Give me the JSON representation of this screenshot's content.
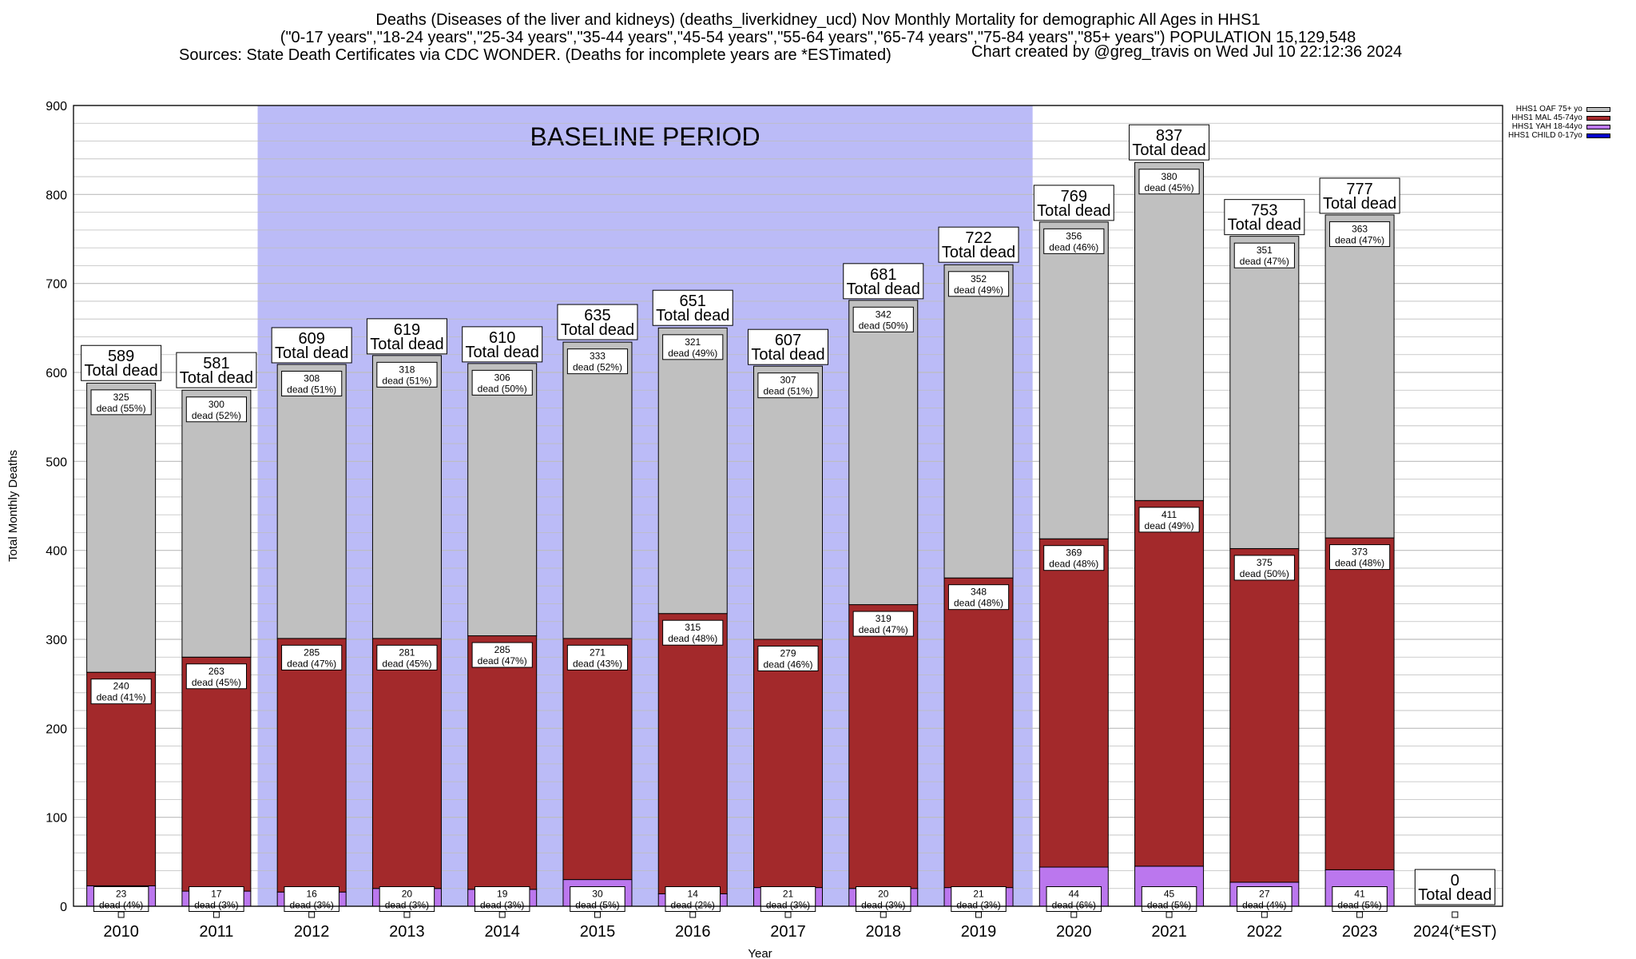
{
  "header": {
    "title_line1": "Deaths (Diseases of the liver and kidneys) (deaths_liverkidney_ucd) Nov Monthly Mortality for demographic All Ages in HHS1",
    "title_line2": "(\"0-17 years\",\"18-24 years\",\"25-34 years\",\"35-44 years\",\"45-54 years\",\"55-64 years\",\"65-74 years\",\"75-84 years\",\"85+ years\") POPULATION 15,129,548",
    "title_line3": "Sources: State Death Certificates via CDC WONDER. (Deaths for incomplete years are *ESTimated)",
    "credit": "Chart created by @greg_travis on Wed Jul 10 22:12:36 2024"
  },
  "chart_data": {
    "type": "bar",
    "stacked": true,
    "xlabel": "Year",
    "ylabel": "Total Monthly Deaths",
    "ylim": [
      0,
      900
    ],
    "yticks": [
      0,
      100,
      200,
      300,
      400,
      500,
      600,
      700,
      800,
      900
    ],
    "grid": true,
    "legend_position": "top-right",
    "annotation": "BASELINE PERIOD",
    "baseline_range": [
      "2012",
      "2019"
    ],
    "categories": [
      "2010",
      "2011",
      "2012",
      "2013",
      "2014",
      "2015",
      "2016",
      "2017",
      "2018",
      "2019",
      "2020",
      "2021",
      "2022",
      "2023",
      "2024(*EST)"
    ],
    "series": [
      {
        "name": "HHS1 CHILD 0-17yo",
        "color": "#0000cc",
        "values": [
          null,
          null,
          null,
          null,
          null,
          null,
          null,
          null,
          null,
          null,
          null,
          null,
          null,
          null,
          null
        ],
        "labels": [
          "",
          "",
          "",
          "",
          "",
          "",
          "",
          "",
          "",
          "",
          "",
          "",
          "",
          "",
          ""
        ]
      },
      {
        "name": "HHS1 YAH 18-44yo",
        "color": "#bb77ee",
        "values": [
          23,
          17,
          16,
          20,
          19,
          30,
          14,
          21,
          20,
          21,
          44,
          45,
          27,
          41,
          0
        ],
        "labels": [
          "dead (4%)",
          "dead (3%)",
          "dead (3%)",
          "dead (3%)",
          "dead (3%)",
          "dead (5%)",
          "dead (2%)",
          "dead (3%)",
          "dead (3%)",
          "dead (3%)",
          "dead (6%)",
          "dead (5%)",
          "dead (4%)",
          "dead (5%)",
          ""
        ]
      },
      {
        "name": "HHS1 MAL 45-74yo",
        "color": "#a3292b",
        "values": [
          240,
          263,
          285,
          281,
          285,
          271,
          315,
          279,
          319,
          348,
          369,
          411,
          375,
          373,
          0
        ],
        "labels": [
          "dead (41%)",
          "dead (45%)",
          "dead (47%)",
          "dead (45%)",
          "dead (47%)",
          "dead (43%)",
          "dead (48%)",
          "dead (46%)",
          "dead (47%)",
          "dead (48%)",
          "dead (48%)",
          "dead (49%)",
          "dead (50%)",
          "dead (48%)",
          ""
        ]
      },
      {
        "name": "HHS1 OAF 75+ yo",
        "color": "#c0c0c0",
        "values": [
          325,
          300,
          308,
          318,
          306,
          333,
          321,
          307,
          342,
          352,
          356,
          380,
          351,
          363,
          0
        ],
        "labels": [
          "dead (55%)",
          "dead (52%)",
          "dead (51%)",
          "dead (51%)",
          "dead (50%)",
          "dead (52%)",
          "dead (49%)",
          "dead (51%)",
          "dead (50%)",
          "dead (49%)",
          "dead (46%)",
          "dead (45%)",
          "dead (47%)",
          "dead (47%)",
          ""
        ]
      }
    ],
    "totals": [
      589,
      581,
      609,
      619,
      610,
      635,
      651,
      607,
      681,
      722,
      769,
      837,
      753,
      777,
      0
    ],
    "total_label": "Total dead"
  },
  "colors": {
    "baseline_shade": "#bbbbf7",
    "grid": "#bdbdbd"
  }
}
